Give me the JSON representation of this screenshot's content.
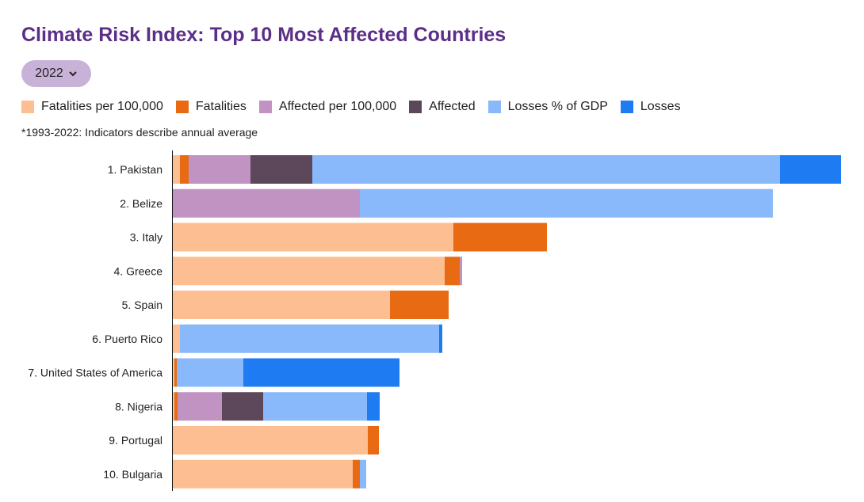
{
  "title": "Climate Risk Index: Top 10 Most Affected Countries",
  "year_select": {
    "value": "2022"
  },
  "note": "*1993-2022: Indicators describe  annual average",
  "chart_data": {
    "type": "bar",
    "orientation": "horizontal",
    "stacked": true,
    "categories": [
      "1. Pakistan",
      "2. Belize",
      "3. Italy",
      "4. Greece",
      "5. Spain",
      "6. Puerto Rico",
      "7. United States of America",
      "8. Nigeria",
      "9. Portugal",
      "10. Bulgaria"
    ],
    "series": [
      {
        "name": "Fatalities per 100,000",
        "color": "#fdbf92",
        "values": [
          9,
          0,
          354,
          343,
          274,
          9,
          2,
          2,
          246,
          227
        ]
      },
      {
        "name": "Fatalities",
        "color": "#e86a13",
        "values": [
          11,
          0,
          118,
          19,
          74,
          0,
          3,
          4,
          14,
          9
        ]
      },
      {
        "name": "Affected per 100,000",
        "color": "#c093c3",
        "values": [
          78,
          236,
          0,
          3,
          0,
          0,
          0,
          56,
          0,
          0
        ]
      },
      {
        "name": "Affected",
        "color": "#5d475a",
        "values": [
          78,
          0,
          0,
          0,
          0,
          0,
          0,
          52,
          0,
          0
        ]
      },
      {
        "name": "Losses % of GDP",
        "color": "#89b8fb",
        "values": [
          590,
          521,
          0,
          0,
          0,
          327,
          84,
          131,
          0,
          8
        ]
      },
      {
        "name": "Losses",
        "color": "#1f7bf2",
        "values": [
          77,
          0,
          0,
          0,
          0,
          4,
          197,
          16,
          0,
          0
        ]
      }
    ],
    "xlim": [
      0,
      843
    ],
    "grid": false,
    "legend_position": "top"
  }
}
